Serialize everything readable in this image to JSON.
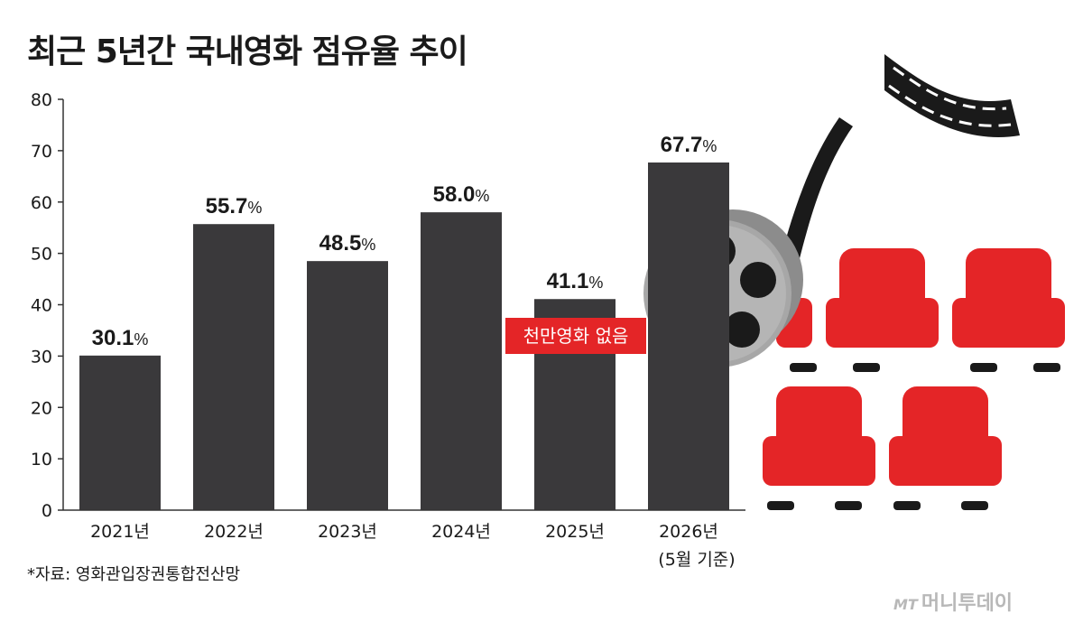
{
  "title": "최근 5년간 국내영화 점유율 추이",
  "source": "*자료: 영화관입장권통합전산망",
  "annotation": "천만영화 없음",
  "logo": {
    "mark": "MT",
    "name": "머니투데이"
  },
  "colors": {
    "bar": "#3a393b",
    "accent": "#e42527",
    "seat": "#e42527",
    "reel": "#9e9e9e",
    "film": "#1a1a1a"
  },
  "icons": [
    "film-strip-icon",
    "film-reel-icon",
    "cinema-seat-icon"
  ],
  "chart_data": {
    "type": "bar",
    "title": "최근 5년간 국내영화 점유율 추이",
    "categories": [
      "2021년",
      "2022년",
      "2023년",
      "2024년",
      "2025년",
      "2026년"
    ],
    "category_note": "(5월 기준)",
    "values": [
      30.1,
      55.7,
      48.5,
      58.0,
      41.1,
      67.7
    ],
    "value_labels": [
      "30.1",
      "55.7",
      "48.5",
      "58.0",
      "41.1",
      "67.7"
    ],
    "value_unit": "%",
    "ylim": [
      0,
      80
    ],
    "yticks": [
      0,
      10,
      20,
      30,
      40,
      50,
      60,
      70,
      80
    ],
    "xlabel": "",
    "ylabel": "",
    "grid": false,
    "legend": "none"
  }
}
